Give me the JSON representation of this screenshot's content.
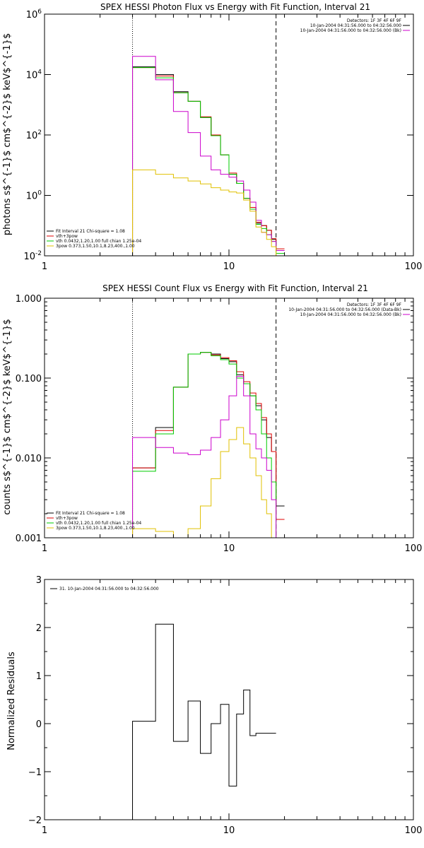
{
  "chart_data": [
    {
      "type": "line",
      "title": "SPEX HESSI Photon Flux vs Energy with Fit Function, Interval 21",
      "ylabel": "photons s$^{-1}$ cm$^{-2}$ keV$^{-1}$",
      "xlabel": "",
      "xscale": "log",
      "yscale": "log",
      "xlim": [
        1,
        100
      ],
      "ylim": [
        0.01,
        1000000
      ],
      "x_ticks": [
        "1",
        "10",
        "100"
      ],
      "y_ticks": [
        "10^-2",
        "10^0",
        "10^2",
        "10^4",
        "10^6"
      ],
      "vlines": [
        {
          "x": 3.0,
          "style": "dotted"
        },
        {
          "x": 18.0,
          "style": "dashed"
        }
      ],
      "legend_topright": [
        {
          "text": "Detectors: 1F 3F 4F 6F 9F"
        },
        {
          "text": "10-Jan-2004 04:31:56.000 to 04:32:56.000",
          "color": "#000000"
        },
        {
          "text": "10-Jan-2004 04:31:56.000 to 04:32:56.000 (Bk)",
          "color": "#cc00cc"
        }
      ],
      "legend_bottomleft": [
        {
          "text": "Fit Interval 21    Chi-square = 1.08",
          "color": "#000000"
        },
        {
          "text": "vth+3pow",
          "color": "#e00000"
        },
        {
          "text": "vth 0.0432,1.20,1.00  full chian 1.25e-04",
          "color": "#00cc00"
        },
        {
          "text": "3pow 0.373,1.50,10.1,8.23,400.,1.00",
          "color": "#e0c000"
        }
      ],
      "bin_edges": [
        3.0,
        4.0,
        5.0,
        6.0,
        7.0,
        8.0,
        9.0,
        10.0,
        11.0,
        12.0,
        13.0,
        14.0,
        15.0,
        16.0,
        17.0,
        18.0,
        20.0
      ],
      "series": [
        {
          "color": "#000000",
          "values": [
            18000,
            10000,
            2700,
            1300,
            380,
            95,
            22,
            5,
            2.5,
            0.8,
            0.4,
            0.12,
            0.1,
            0.07,
            0.035,
            0.015
          ]
        },
        {
          "color": "#e00000",
          "values": [
            17000,
            9000,
            2500,
            1300,
            400,
            100,
            22,
            5.5,
            2.5,
            0.8,
            0.4,
            0.13,
            0.1,
            0.07,
            0.037,
            0.017
          ]
        },
        {
          "color": "#00cc00",
          "values": [
            17000,
            7800,
            2500,
            1300,
            380,
            95,
            22,
            5,
            2.5,
            0.8,
            0.35,
            0.11,
            0.08,
            0.05,
            0.03,
            0.012
          ]
        },
        {
          "color": "#cc00cc",
          "values": [
            40000,
            6700,
            600,
            120,
            20,
            7,
            5,
            4,
            3,
            1.5,
            0.6,
            0.15,
            0.06,
            0.05,
            0.03,
            0.015
          ]
        },
        {
          "color": "#e0c000",
          "values": [
            7,
            5,
            3.8,
            3,
            2.4,
            1.8,
            1.5,
            1.3,
            1.2,
            0.7,
            0.3,
            0.09,
            0.06,
            0.035,
            0.02,
            0.01
          ]
        }
      ]
    },
    {
      "type": "line",
      "title": "SPEX HESSI Count Flux vs Energy with Fit Function, Interval 21",
      "ylabel": "counts s$^{-1}$ cm$^{-2}$ keV$^{-1}$",
      "xlabel": "",
      "xscale": "log",
      "yscale": "log",
      "xlim": [
        1,
        100
      ],
      "ylim": [
        0.001,
        1.0
      ],
      "x_ticks": [
        "1",
        "10",
        "100"
      ],
      "y_ticks": [
        "0.001",
        "0.010",
        "0.100",
        "1.000"
      ],
      "vlines": [
        {
          "x": 3.0,
          "style": "dotted"
        },
        {
          "x": 18.0,
          "style": "dashed"
        }
      ],
      "legend_topright": [
        {
          "text": "Detectors: 1F 3F 4F 6F 9F"
        },
        {
          "text": "10-Jan-2004 04:31:56.000 to 04:32:56.000 (Data-Bk)",
          "color": "#000000"
        },
        {
          "text": "10-Jan-2004 04:31:56.000 to 04:32:56.000 (Bk)",
          "color": "#cc00cc"
        }
      ],
      "legend_bottomleft": [
        {
          "text": "Fit Interval 21    Chi-square = 1.08",
          "color": "#000000"
        },
        {
          "text": "vth+3pow",
          "color": "#e00000"
        },
        {
          "text": "vth 0.0432,1.20,1.00  full chian 1.25e-04",
          "color": "#00cc00"
        },
        {
          "text": "3pow 0.373,1.50,10.1,8.23,400.,1.00",
          "color": "#e0c000"
        }
      ],
      "bin_edges": [
        3.0,
        4.0,
        5.0,
        6.0,
        7.0,
        8.0,
        9.0,
        10.0,
        11.0,
        12.0,
        13.0,
        14.0,
        15.0,
        16.0,
        17.0,
        18.0,
        20.0
      ],
      "series": [
        {
          "color": "#000000",
          "values": [
            0.0075,
            0.024,
            0.077,
            0.2,
            0.21,
            0.2,
            0.175,
            0.16,
            0.11,
            0.085,
            0.06,
            0.045,
            0.03,
            0.018,
            0.012,
            0.0025
          ]
        },
        {
          "color": "#e00000",
          "values": [
            0.0075,
            0.022,
            0.077,
            0.2,
            0.21,
            0.195,
            0.18,
            0.165,
            0.12,
            0.09,
            0.065,
            0.048,
            0.032,
            0.02,
            0.012,
            0.0017
          ]
        },
        {
          "color": "#00cc00",
          "values": [
            0.0068,
            0.02,
            0.077,
            0.2,
            0.21,
            0.19,
            0.17,
            0.15,
            0.1,
            0.085,
            0.06,
            0.04,
            0.02,
            0.01,
            0.005,
            0.0008
          ]
        },
        {
          "color": "#cc00cc",
          "values": [
            0.018,
            0.0135,
            0.0115,
            0.011,
            0.0125,
            0.018,
            0.03,
            0.06,
            0.105,
            0.06,
            0.02,
            0.013,
            0.01,
            0.007,
            0.003,
            0.0009
          ]
        },
        {
          "color": "#e0c000",
          "values": [
            0.0013,
            0.0012,
            0.0005,
            0.0013,
            0.0025,
            0.0055,
            0.012,
            0.017,
            0.024,
            0.015,
            0.01,
            0.006,
            0.003,
            0.002,
            0.0009,
            0.0004
          ]
        }
      ]
    },
    {
      "type": "line",
      "title": "",
      "ylabel": "Normalized Residuals",
      "xlabel": "",
      "xscale": "log",
      "yscale": "linear",
      "xlim": [
        1,
        100
      ],
      "ylim": [
        -2,
        3
      ],
      "x_ticks": [
        "1",
        "10",
        "100"
      ],
      "y_ticks": [
        "−2",
        "−1",
        "0",
        "1",
        "2",
        "3"
      ],
      "legend_topleft": [
        {
          "text": "31. 10-Jan-2004 04:31:56.000 to 04:32:56.000",
          "color": "#000000"
        }
      ],
      "bin_edges": [
        3.0,
        4.0,
        5.0,
        6.0,
        7.0,
        8.0,
        9.0,
        10.0,
        11.0,
        12.0,
        13.0,
        14.0,
        15.0,
        18.0
      ],
      "series": [
        {
          "color": "#000000",
          "values": [
            0.05,
            2.07,
            -0.37,
            0.47,
            -0.62,
            0.0,
            0.4,
            -1.3,
            0.2,
            0.7,
            -0.25,
            -0.2,
            -0.2
          ]
        }
      ]
    }
  ]
}
